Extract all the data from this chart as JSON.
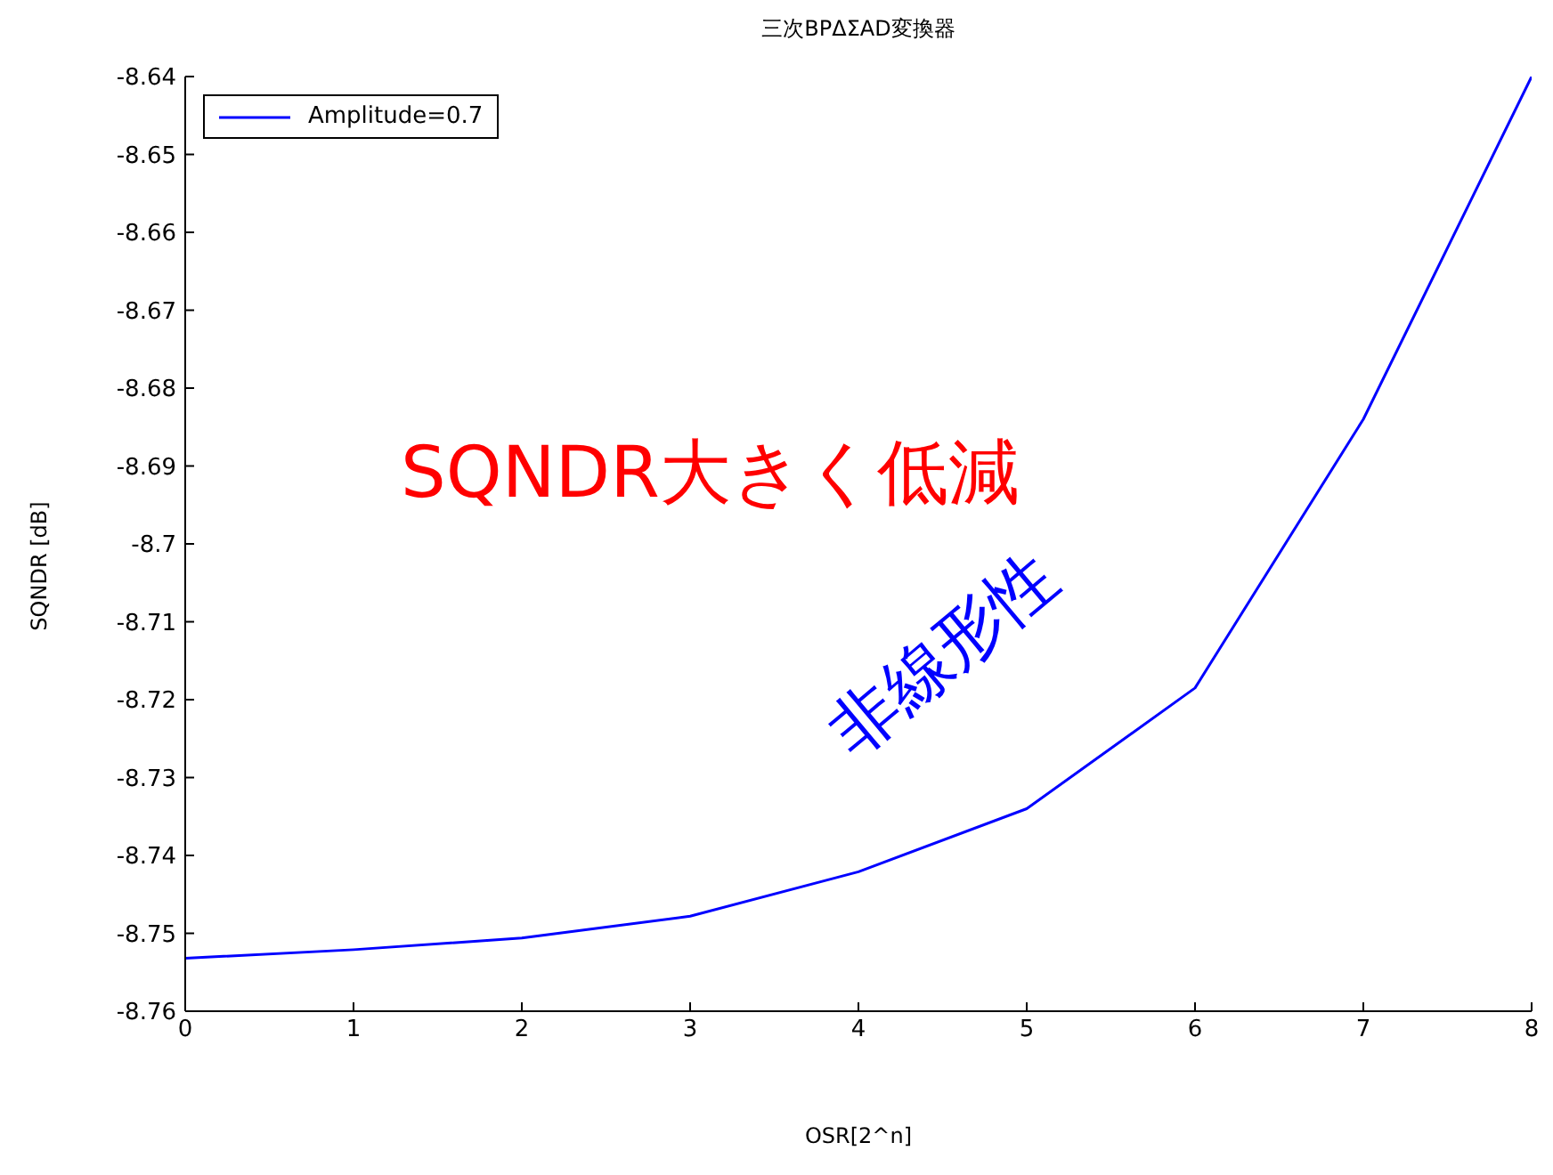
{
  "chart_data": {
    "type": "line",
    "title": "三次BPΔΣAD変換器",
    "xlabel": "OSR[2^n]",
    "ylabel": "SQNDR [dB]",
    "x": [
      0,
      1,
      2,
      3,
      4,
      5,
      6,
      7,
      8
    ],
    "series": [
      {
        "name": "Amplitude=0.7",
        "color": "#0000ff",
        "values": [
          -8.7532,
          -8.7521,
          -8.7506,
          -8.7478,
          -8.7421,
          -8.734,
          -8.7185,
          -8.684,
          -8.64
        ]
      }
    ],
    "xlim": [
      0,
      8
    ],
    "xticks": [
      0,
      1,
      2,
      3,
      4,
      5,
      6,
      7,
      8
    ],
    "ylim": [
      -8.76,
      -8.64
    ],
    "yticks": [
      -8.76,
      -8.75,
      -8.74,
      -8.73,
      -8.72,
      -8.71,
      -8.7,
      -8.69,
      -8.68,
      -8.67,
      -8.66,
      -8.65,
      -8.64
    ],
    "annotations": [
      "SQNDR大きく低減",
      "非線形性"
    ],
    "legend": "top left",
    "grid": false,
    "marker": "none",
    "line_style": "solid"
  }
}
